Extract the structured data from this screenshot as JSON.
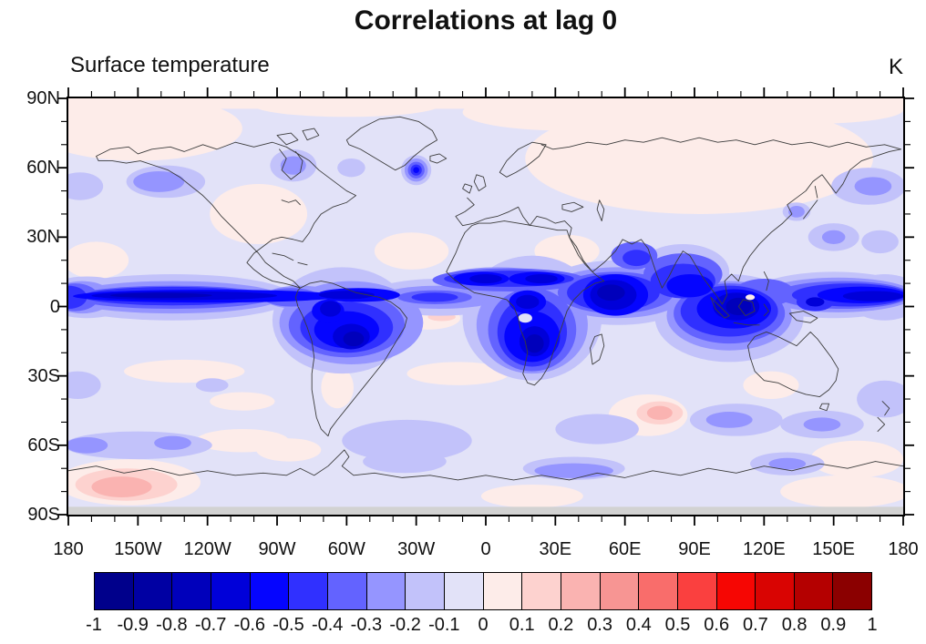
{
  "header": {
    "title": "Correlations at lag 0",
    "left_label": "Surface temperature",
    "right_label": "K"
  },
  "chart_data": {
    "type": "heatmap",
    "title": "Correlations at lag 0",
    "variable": "Surface temperature",
    "units": "K",
    "map": "global equirectangular map, longitude 180W-180E, latitude 90S-90N, coastlines overlaid",
    "x_axis": {
      "tick_labels": [
        "180",
        "150W",
        "120W",
        "90W",
        "60W",
        "30W",
        "0",
        "30E",
        "60E",
        "90E",
        "120E",
        "150E",
        "180"
      ],
      "major_tick_interval_deg": 30,
      "minor_tick_interval_deg": 10
    },
    "y_axis": {
      "tick_labels": [
        "90N",
        "60N",
        "30N",
        "0",
        "30S",
        "60S",
        "90S"
      ],
      "major_tick_interval_deg": 30,
      "minor_tick_interval_deg": 10
    },
    "colorbar": {
      "orientation": "horizontal",
      "levels": [
        -1,
        -0.9,
        -0.8,
        -0.7,
        -0.6,
        -0.5,
        -0.4,
        -0.3,
        -0.2,
        -0.1,
        0,
        0.1,
        0.2,
        0.3,
        0.4,
        0.5,
        0.6,
        0.7,
        0.8,
        0.9,
        1
      ],
      "labels": [
        "-1",
        "-0.9",
        "-0.8",
        "-0.7",
        "-0.6",
        "-0.5",
        "-0.4",
        "-0.3",
        "-0.2",
        "-0.1",
        "0",
        "0.1",
        "0.2",
        "0.3",
        "0.4",
        "0.5",
        "0.6",
        "0.7",
        "0.8",
        "0.9",
        "1"
      ],
      "colors": [
        "#00008b",
        "#0000a3",
        "#0000bb",
        "#0000d9",
        "#0505ff",
        "#3030ff",
        "#6363ff",
        "#9595ff",
        "#c2c2fa",
        "#e2e2f8",
        "#fdece9",
        "#fdd2cf",
        "#fab3b1",
        "#f79593",
        "#f96d6b",
        "#fa403f",
        "#f60603",
        "#d90402",
        "#b40000",
        "#8b0000"
      ]
    },
    "features": [
      {
        "region": "equatorial Pacific band (~0-8N, full Pacific width)",
        "correlation": -0.8
      },
      {
        "region": "Amazon basin / tropical South America",
        "correlation": -0.8
      },
      {
        "region": "equatorial and southern Africa (Congo, S. Africa cores)",
        "correlation": -0.8
      },
      {
        "region": "Sahel band (~10-15N across Africa)",
        "correlation": -0.6
      },
      {
        "region": "Arabian Sea / Horn of Africa / India",
        "correlation": -0.7
      },
      {
        "region": "Maritime Continent / Indonesia",
        "correlation": -0.7
      },
      {
        "region": "western equatorial Pacific at 180E edge",
        "correlation": -0.7
      },
      {
        "region": "subpolar North Atlantic spot (~60N, 30W)",
        "correlation": -0.6
      },
      {
        "region": "Hudson Bay, Gulf of Alaska, NW Pacific patches",
        "correlation": -0.3
      },
      {
        "region": "scattered Southern Ocean patches (45-65S)",
        "correlation": -0.2
      },
      {
        "region": "West Antarctica (~75S, 130-170W)",
        "correlation": 0.3
      },
      {
        "region": "southern Indian Ocean blob (~45S, 75E)",
        "correlation": 0.3
      },
      {
        "region": "Siberia / central Asia interior",
        "correlation": 0.1
      },
      {
        "region": "central North America interior",
        "correlation": 0.1
      },
      {
        "region": "most remaining oceans (background)",
        "correlation": -0.1
      },
      {
        "region": "narrow band south of ~87S",
        "correlation": "no data (gray strip)"
      }
    ]
  }
}
